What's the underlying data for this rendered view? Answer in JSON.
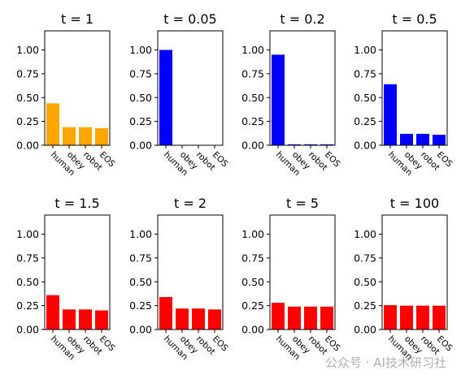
{
  "chart_data": [
    {
      "type": "bar",
      "title": "t = 1",
      "categories": [
        "human",
        "obey",
        "robot",
        "EOS"
      ],
      "values": [
        0.44,
        0.19,
        0.19,
        0.18
      ],
      "color": "#FFA500",
      "ylim": [
        0,
        1.2
      ],
      "yticks": [
        "0.00",
        "0.25",
        "0.50",
        "0.75",
        "1.00"
      ]
    },
    {
      "type": "bar",
      "title": "t = 0.05",
      "categories": [
        "human",
        "obey",
        "robot",
        "EOS"
      ],
      "values": [
        1.0,
        0.0,
        0.0,
        0.0
      ],
      "color": "#0000FF",
      "ylim": [
        0,
        1.2
      ],
      "yticks": [
        "0.00",
        "0.25",
        "0.50",
        "0.75",
        "1.00"
      ]
    },
    {
      "type": "bar",
      "title": "t = 0.2",
      "categories": [
        "human",
        "obey",
        "robot",
        "EOS"
      ],
      "values": [
        0.95,
        0.01,
        0.01,
        0.01
      ],
      "color": "#0000FF",
      "ylim": [
        0,
        1.2
      ],
      "yticks": [
        "0.00",
        "0.25",
        "0.50",
        "0.75",
        "1.00"
      ]
    },
    {
      "type": "bar",
      "title": "t = 0.5",
      "categories": [
        "human",
        "obey",
        "robot",
        "EOS"
      ],
      "values": [
        0.64,
        0.12,
        0.12,
        0.11
      ],
      "color": "#0000FF",
      "ylim": [
        0,
        1.2
      ],
      "yticks": [
        "0.00",
        "0.25",
        "0.50",
        "0.75",
        "1.00"
      ]
    },
    {
      "type": "bar",
      "title": "t = 1.5",
      "categories": [
        "human",
        "obey",
        "robot",
        "EOS"
      ],
      "values": [
        0.36,
        0.21,
        0.21,
        0.2
      ],
      "color": "#FF0000",
      "ylim": [
        0,
        1.2
      ],
      "yticks": [
        "0.00",
        "0.25",
        "0.50",
        "0.75",
        "1.00"
      ]
    },
    {
      "type": "bar",
      "title": "t = 2",
      "categories": [
        "human",
        "obey",
        "robot",
        "EOS"
      ],
      "values": [
        0.34,
        0.22,
        0.22,
        0.21
      ],
      "color": "#FF0000",
      "ylim": [
        0,
        1.2
      ],
      "yticks": [
        "0.00",
        "0.25",
        "0.50",
        "0.75",
        "1.00"
      ]
    },
    {
      "type": "bar",
      "title": "t = 5",
      "categories": [
        "human",
        "obey",
        "robot",
        "EOS"
      ],
      "values": [
        0.28,
        0.24,
        0.24,
        0.24
      ],
      "color": "#FF0000",
      "ylim": [
        0,
        1.2
      ],
      "yticks": [
        "0.00",
        "0.25",
        "0.50",
        "0.75",
        "1.00"
      ]
    },
    {
      "type": "bar",
      "title": "t = 100",
      "categories": [
        "human",
        "obey",
        "robot",
        "EOS"
      ],
      "values": [
        0.255,
        0.25,
        0.25,
        0.25
      ],
      "color": "#FF0000",
      "ylim": [
        0,
        1.2
      ],
      "yticks": [
        "0.00",
        "0.25",
        "0.50",
        "0.75",
        "1.00"
      ]
    }
  ],
  "watermark": "公众号 · AI技术研习社"
}
